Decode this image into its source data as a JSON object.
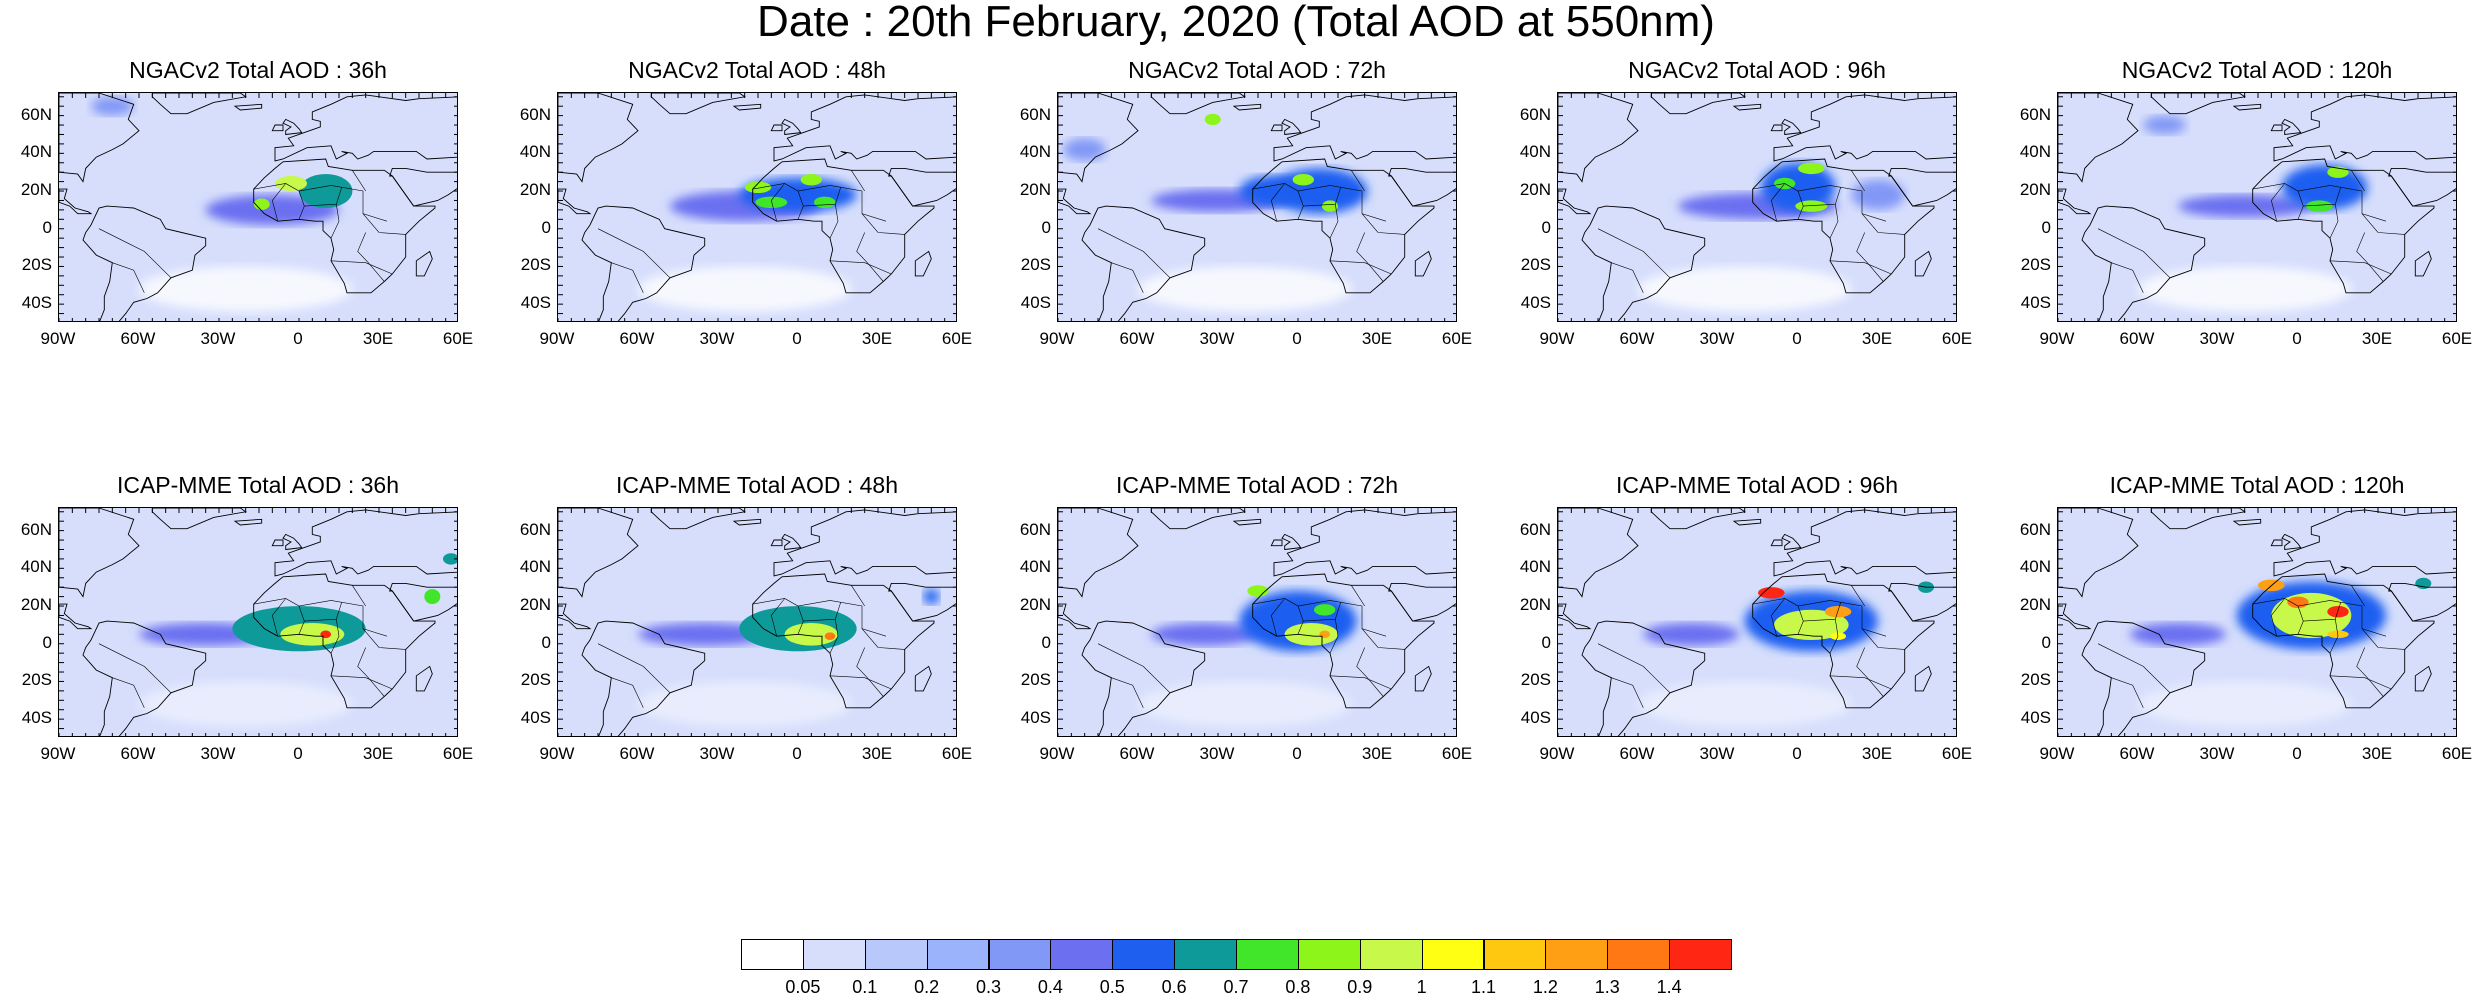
{
  "title": "Date : 20th February, 2020 (Total AOD at 550nm)",
  "lat_labels": [
    "60N",
    "40N",
    "20N",
    "0",
    "20S",
    "40S"
  ],
  "lat_values": [
    60,
    40,
    20,
    0,
    -20,
    -40
  ],
  "lon_labels": [
    "90W",
    "60W",
    "30W",
    "0",
    "30E",
    "60E"
  ],
  "lon_values": [
    -90,
    -60,
    -30,
    0,
    30,
    60
  ],
  "map_extent": {
    "lon": [
      -90,
      60
    ],
    "lat": [
      -50,
      72
    ]
  },
  "panels": [
    {
      "title": "NGACv2 Total AOD : 36h",
      "model": "NGACv2",
      "lead": 36,
      "hotspots": [
        {
          "lon": -3,
          "lat": 24,
          "level": 0.9,
          "rlon": 6,
          "rlat": 4
        },
        {
          "lon": -14,
          "lat": 13,
          "level": 0.8,
          "rlon": 3,
          "rlat": 3
        },
        {
          "lon": 10,
          "lat": 20,
          "level": 0.6,
          "rlon": 10,
          "rlat": 9
        },
        {
          "lon": -10,
          "lat": 10,
          "level": 0.4,
          "rlon": 25,
          "rlat": 8
        },
        {
          "lon": -70,
          "lat": 65,
          "level": 0.3,
          "rlon": 8,
          "rlat": 5
        }
      ]
    },
    {
      "title": "NGACv2 Total AOD : 48h",
      "model": "NGACv2",
      "lead": 48,
      "hotspots": [
        {
          "lon": -15,
          "lat": 22,
          "level": 0.8,
          "rlon": 5,
          "rlat": 3
        },
        {
          "lon": 5,
          "lat": 26,
          "level": 0.8,
          "rlon": 4,
          "rlat": 3
        },
        {
          "lon": -10,
          "lat": 14,
          "level": 0.7,
          "rlon": 6,
          "rlat": 3
        },
        {
          "lon": 10,
          "lat": 14,
          "level": 0.7,
          "rlon": 4,
          "rlat": 3
        },
        {
          "lon": 0,
          "lat": 18,
          "level": 0.5,
          "rlon": 22,
          "rlat": 9
        },
        {
          "lon": -20,
          "lat": 12,
          "level": 0.4,
          "rlon": 28,
          "rlat": 8
        }
      ]
    },
    {
      "title": "NGACv2 Total AOD : 72h",
      "model": "NGACv2",
      "lead": 72,
      "hotspots": [
        {
          "lon": -32,
          "lat": 58,
          "level": 0.8,
          "rlon": 3,
          "rlat": 3
        },
        {
          "lon": 2,
          "lat": 26,
          "level": 0.8,
          "rlon": 4,
          "rlat": 3
        },
        {
          "lon": 12,
          "lat": 12,
          "level": 0.8,
          "rlon": 3,
          "rlat": 3
        },
        {
          "lon": -10,
          "lat": 20,
          "level": 0.5,
          "rlon": 12,
          "rlat": 8
        },
        {
          "lon": 8,
          "lat": 20,
          "level": 0.5,
          "rlon": 18,
          "rlat": 12
        },
        {
          "lon": -30,
          "lat": 15,
          "level": 0.4,
          "rlon": 25,
          "rlat": 6
        },
        {
          "lon": -80,
          "lat": 42,
          "level": 0.3,
          "rlon": 8,
          "rlat": 6
        }
      ]
    },
    {
      "title": "NGACv2 Total AOD : 96h",
      "model": "NGACv2",
      "lead": 96,
      "hotspots": [
        {
          "lon": 5,
          "lat": 32,
          "level": 0.8,
          "rlon": 5,
          "rlat": 3
        },
        {
          "lon": -5,
          "lat": 24,
          "level": 0.7,
          "rlon": 4,
          "rlat": 3
        },
        {
          "lon": 5,
          "lat": 12,
          "level": 0.8,
          "rlon": 6,
          "rlat": 3
        },
        {
          "lon": 0,
          "lat": 22,
          "level": 0.5,
          "rlon": 14,
          "rlat": 13
        },
        {
          "lon": -15,
          "lat": 12,
          "level": 0.4,
          "rlon": 30,
          "rlat": 7
        },
        {
          "lon": 30,
          "lat": 18,
          "level": 0.3,
          "rlon": 10,
          "rlat": 8
        }
      ]
    },
    {
      "title": "NGACv2 Total AOD : 120h",
      "model": "NGACv2",
      "lead": 120,
      "hotspots": [
        {
          "lon": 15,
          "lat": 30,
          "level": 0.8,
          "rlon": 4,
          "rlat": 3
        },
        {
          "lon": 8,
          "lat": 12,
          "level": 0.7,
          "rlon": 5,
          "rlat": 3
        },
        {
          "lon": 10,
          "lat": 22,
          "level": 0.5,
          "rlon": 16,
          "rlat": 12
        },
        {
          "lon": -20,
          "lat": 12,
          "level": 0.4,
          "rlon": 25,
          "rlat": 6
        },
        {
          "lon": -50,
          "lat": 55,
          "level": 0.3,
          "rlon": 8,
          "rlat": 5
        }
      ]
    },
    {
      "title": "ICAP-MME Total AOD : 36h",
      "model": "ICAP-MME",
      "lead": 36,
      "hotspots": [
        {
          "lon": 5,
          "lat": 5,
          "level": 0.9,
          "rlon": 12,
          "rlat": 6
        },
        {
          "lon": 10,
          "lat": 5,
          "level": 1.4,
          "rlon": 2,
          "rlat": 2
        },
        {
          "lon": 0,
          "lat": 8,
          "level": 0.6,
          "rlon": 25,
          "rlat": 12
        },
        {
          "lon": -35,
          "lat": 5,
          "level": 0.4,
          "rlon": 25,
          "rlat": 6
        },
        {
          "lon": 50,
          "lat": 25,
          "level": 0.7,
          "rlon": 3,
          "rlat": 4
        },
        {
          "lon": 57,
          "lat": 45,
          "level": 0.6,
          "rlon": 3,
          "rlat": 3
        }
      ]
    },
    {
      "title": "ICAP-MME Total AOD : 48h",
      "model": "ICAP-MME",
      "lead": 48,
      "hotspots": [
        {
          "lon": 5,
          "lat": 5,
          "level": 0.9,
          "rlon": 10,
          "rlat": 6
        },
        {
          "lon": 12,
          "lat": 4,
          "level": 1.3,
          "rlon": 2,
          "rlat": 2
        },
        {
          "lon": 0,
          "lat": 8,
          "level": 0.6,
          "rlon": 22,
          "rlat": 12
        },
        {
          "lon": -35,
          "lat": 5,
          "level": 0.4,
          "rlon": 25,
          "rlat": 6
        },
        {
          "lon": 50,
          "lat": 25,
          "level": 0.5,
          "rlon": 3,
          "rlat": 4
        }
      ]
    },
    {
      "title": "ICAP-MME Total AOD : 72h",
      "model": "ICAP-MME",
      "lead": 72,
      "hotspots": [
        {
          "lon": -15,
          "lat": 28,
          "level": 0.8,
          "rlon": 4,
          "rlat": 3
        },
        {
          "lon": 5,
          "lat": 5,
          "level": 0.9,
          "rlon": 10,
          "rlat": 6
        },
        {
          "lon": 10,
          "lat": 5,
          "level": 1.2,
          "rlon": 2,
          "rlat": 2
        },
        {
          "lon": 10,
          "lat": 18,
          "level": 0.7,
          "rlon": 4,
          "rlat": 3
        },
        {
          "lon": 0,
          "lat": 12,
          "level": 0.5,
          "rlon": 22,
          "rlat": 16
        },
        {
          "lon": -35,
          "lat": 5,
          "level": 0.4,
          "rlon": 20,
          "rlat": 6
        }
      ]
    },
    {
      "title": "ICAP-MME Total AOD : 96h",
      "model": "ICAP-MME",
      "lead": 96,
      "hotspots": [
        {
          "lon": -10,
          "lat": 27,
          "level": 1.4,
          "rlon": 5,
          "rlat": 3
        },
        {
          "lon": 15,
          "lat": 17,
          "level": 1.2,
          "rlon": 5,
          "rlat": 3
        },
        {
          "lon": 5,
          "lat": 10,
          "level": 0.9,
          "rlon": 14,
          "rlat": 8
        },
        {
          "lon": 15,
          "lat": 4,
          "level": 1.0,
          "rlon": 3,
          "rlat": 2
        },
        {
          "lon": 5,
          "lat": 12,
          "level": 0.5,
          "rlon": 25,
          "rlat": 16
        },
        {
          "lon": -40,
          "lat": 5,
          "level": 0.4,
          "rlon": 18,
          "rlat": 6
        },
        {
          "lon": 48,
          "lat": 30,
          "level": 0.6,
          "rlon": 3,
          "rlat": 3
        }
      ]
    },
    {
      "title": "ICAP-MME Total AOD : 120h",
      "model": "ICAP-MME",
      "lead": 120,
      "hotspots": [
        {
          "lon": -10,
          "lat": 31,
          "level": 1.2,
          "rlon": 5,
          "rlat": 3
        },
        {
          "lon": 0,
          "lat": 22,
          "level": 1.3,
          "rlon": 4,
          "rlat": 3
        },
        {
          "lon": 15,
          "lat": 17,
          "level": 1.4,
          "rlon": 4,
          "rlat": 3
        },
        {
          "lon": 15,
          "lat": 5,
          "level": 1.1,
          "rlon": 4,
          "rlat": 2
        },
        {
          "lon": 5,
          "lat": 15,
          "level": 0.9,
          "rlon": 15,
          "rlat": 12
        },
        {
          "lon": 5,
          "lat": 15,
          "level": 0.5,
          "rlon": 28,
          "rlat": 18
        },
        {
          "lon": -45,
          "lat": 5,
          "level": 0.4,
          "rlon": 18,
          "rlat": 6
        },
        {
          "lon": 47,
          "lat": 32,
          "level": 0.6,
          "rlon": 3,
          "rlat": 3
        }
      ]
    }
  ],
  "colorbar": {
    "labels": [
      "0.05",
      "0.1",
      "0.2",
      "0.3",
      "0.4",
      "0.5",
      "0.6",
      "0.7",
      "0.8",
      "0.9",
      "1",
      "1.1",
      "1.2",
      "1.3",
      "1.4"
    ],
    "colors": [
      "#ffffff",
      "#d6defc",
      "#b9c8fb",
      "#9bb3fa",
      "#8298f6",
      "#6b6ff0",
      "#1f5ff0",
      "#0f9a9a",
      "#41e52a",
      "#8ef51a",
      "#c8f84a",
      "#ffff14",
      "#ffc810",
      "#ffa014",
      "#ff7814",
      "#ff2614"
    ]
  }
}
